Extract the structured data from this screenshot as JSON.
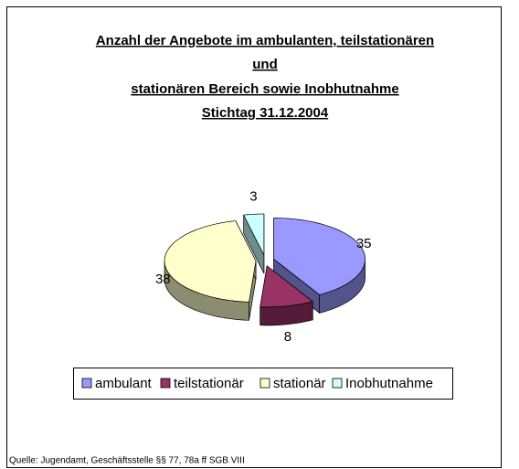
{
  "chart_data": {
    "type": "pie3d",
    "title": [
      "Anzahl der Angebote im ambulanten, teilstationären",
      "und",
      "stationären Bereich sowie Inobhutnahme",
      "Stichtag 31.12.2004"
    ],
    "categories": [
      "ambulant",
      "teilstationär",
      "stationär",
      "Inobhutnahme"
    ],
    "values": [
      35,
      8,
      38,
      3
    ],
    "colors": [
      "#9999ff",
      "#993366",
      "#ffffcc",
      "#ccffff"
    ],
    "legend": "bottom",
    "source": "Quelle: Jugendamt, Geschäftsstelle §§ 77, 78a ff SGB VIII"
  }
}
